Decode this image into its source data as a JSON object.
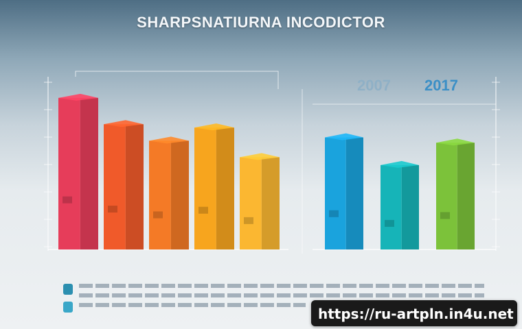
{
  "header": {
    "title": "SHARPSNATIURNA INCODICTOR",
    "subtitle": "",
    "overlay_left": "2007",
    "overlay_right": "2017"
  },
  "chart_data": [
    {
      "type": "bar",
      "title": "",
      "ylabel": "",
      "categories": [
        "",
        "",
        "",
        "",
        ""
      ],
      "values": [
        230,
        190,
        165,
        185,
        140
      ],
      "ylim": [
        0,
        260
      ],
      "colors": [
        "#e63d5a",
        "#f05a2a",
        "#f47a26",
        "#f7a51e",
        "#fbb731"
      ],
      "grid": false
    },
    {
      "type": "bar",
      "title": "",
      "ylabel": "",
      "categories": [
        "",
        "",
        ""
      ],
      "values": [
        170,
        128,
        162
      ],
      "ylim": [
        0,
        260
      ],
      "colors": [
        "#1aa3dd",
        "#16b4b8",
        "#7cc23a"
      ],
      "grid": false
    }
  ],
  "footer": {
    "url": "https://ru-artpln.in4u.net"
  },
  "palette": {
    "label_color": "#3e4a57",
    "axis_color": "#ffffff"
  }
}
